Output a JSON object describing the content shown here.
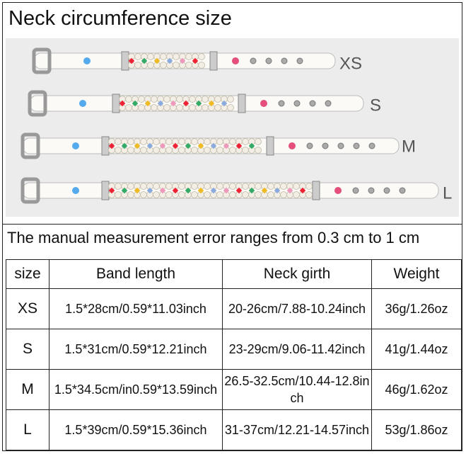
{
  "header": {
    "title": "Neck circumference size"
  },
  "photo": {
    "size_labels": [
      "XS",
      "S",
      "M",
      "L"
    ]
  },
  "note": "The manual measurement error ranges from 0.3 cm to 1 cm",
  "table": {
    "columns": [
      "size",
      "Band length",
      "Neck girth",
      "Weight"
    ],
    "rows": [
      [
        "XS",
        "1.5*28cm/0.59*11.03inch",
        "20-26cm/7.88-10.24inch",
        "36g/1.26oz"
      ],
      [
        "S",
        "1.5*31cm/0.59*12.21inch",
        "23-29cm/9.06-11.42inch",
        "41g/1.44oz"
      ],
      [
        "M",
        "1.5*34.5cm/in0.59*13.59inch",
        "26.5-32.5cm/10.44-12.8inch",
        "46g/1.62oz"
      ],
      [
        "L",
        "1.5*39cm/0.59*15.36inch",
        "31-37cm/12.21-14.57inch",
        "53g/1.86oz"
      ]
    ]
  }
}
